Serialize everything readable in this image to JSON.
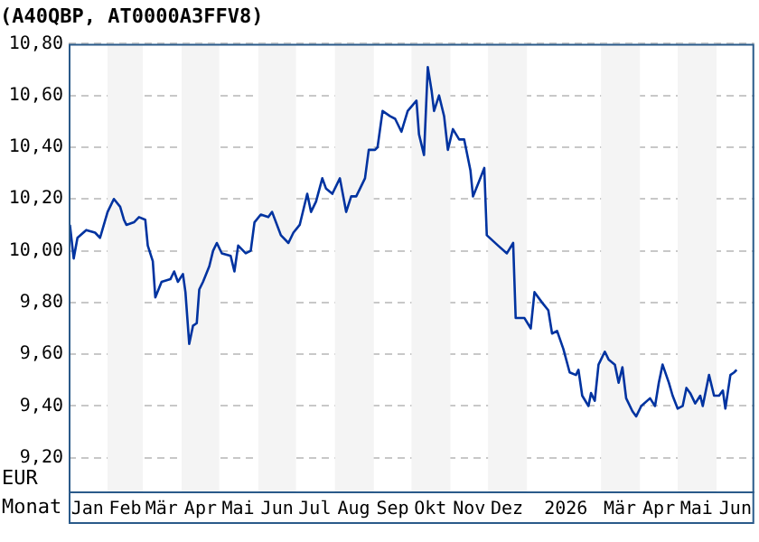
{
  "chart_data": {
    "type": "line",
    "title": "(A40QBP, AT0000A3FFV8)",
    "ylabel": "EUR",
    "xlabel": "Monat",
    "xlim": [
      "2025-01-01",
      "2026-07-01"
    ],
    "xticks": [
      {
        "value": "2025-01-16",
        "label": "Jan"
      },
      {
        "value": "2025-02-15",
        "label": "Feb"
      },
      {
        "value": "2025-03-16",
        "label": "Mär"
      },
      {
        "value": "2025-04-16",
        "label": "Apr"
      },
      {
        "value": "2025-05-16",
        "label": "Mai"
      },
      {
        "value": "2025-06-16",
        "label": "Jun"
      },
      {
        "value": "2025-07-16",
        "label": "Jul"
      },
      {
        "value": "2025-08-16",
        "label": "Aug"
      },
      {
        "value": "2025-09-16",
        "label": "Sep"
      },
      {
        "value": "2025-10-16",
        "label": "Okt"
      },
      {
        "value": "2025-11-16",
        "label": "Nov"
      },
      {
        "value": "2025-12-16",
        "label": "Dez"
      },
      {
        "value": "2026-02-01",
        "label": "2026"
      },
      {
        "value": "2026-03-16",
        "label": "Mär"
      },
      {
        "value": "2026-04-16",
        "label": "Apr"
      },
      {
        "value": "2026-05-16",
        "label": "Mai"
      },
      {
        "value": "2026-06-16",
        "label": "Jun"
      }
    ],
    "ylim": [
      9.07,
      10.8
    ],
    "yticks": [
      {
        "value": 9.2,
        "label": "9,20"
      },
      {
        "value": 9.4,
        "label": "9,40"
      },
      {
        "value": 9.6,
        "label": "9,60"
      },
      {
        "value": 9.8,
        "label": "9,80"
      },
      {
        "value": 10.0,
        "label": "10,00"
      },
      {
        "value": 10.2,
        "label": "10,20"
      },
      {
        "value": 10.4,
        "label": "10,40"
      },
      {
        "value": 10.6,
        "label": "10,60"
      },
      {
        "value": 10.8,
        "label": "10,80"
      }
    ],
    "grid": "y",
    "legend": false,
    "marker": "none",
    "line_style": "solid",
    "bands": [
      {
        "axis": "x",
        "from": "2025-02-01",
        "to": "2025-03-01",
        "color": "#f4f4f4"
      },
      {
        "axis": "x",
        "from": "2025-04-01",
        "to": "2025-05-01",
        "color": "#f4f4f4"
      },
      {
        "axis": "x",
        "from": "2025-06-01",
        "to": "2025-07-01",
        "color": "#f4f4f4"
      },
      {
        "axis": "x",
        "from": "2025-08-01",
        "to": "2025-09-01",
        "color": "#f4f4f4"
      },
      {
        "axis": "x",
        "from": "2025-10-01",
        "to": "2025-11-01",
        "color": "#f4f4f4"
      },
      {
        "axis": "x",
        "from": "2025-12-01",
        "to": "2026-01-01",
        "color": "#f4f4f4"
      },
      {
        "axis": "x",
        "from": "2026-03-01",
        "to": "2026-04-01",
        "color": "#f4f4f4"
      },
      {
        "axis": "x",
        "from": "2026-05-01",
        "to": "2026-06-01",
        "color": "#f4f4f4"
      }
    ],
    "series": [
      {
        "color": "#0033a0",
        "x": [
          "2025-01-02",
          "2025-01-05",
          "2025-01-08",
          "2025-01-15",
          "2025-01-22",
          "2025-01-26",
          "2025-02-01",
          "2025-02-06",
          "2025-02-11",
          "2025-02-14",
          "2025-02-16",
          "2025-02-22",
          "2025-02-26",
          "2025-03-03",
          "2025-03-05",
          "2025-03-09",
          "2025-03-11",
          "2025-03-16",
          "2025-03-23",
          "2025-03-26",
          "2025-03-29",
          "2025-04-02",
          "2025-04-04",
          "2025-04-07",
          "2025-04-10",
          "2025-04-13",
          "2025-04-15",
          "2025-04-18",
          "2025-04-23",
          "2025-04-26",
          "2025-04-29",
          "2025-05-03",
          "2025-05-10",
          "2025-05-13",
          "2025-05-16",
          "2025-05-22",
          "2025-05-26",
          "2025-05-29",
          "2025-06-03",
          "2025-06-09",
          "2025-06-12",
          "2025-06-19",
          "2025-06-25",
          "2025-06-29",
          "2025-07-04",
          "2025-07-10",
          "2025-07-13",
          "2025-07-17",
          "2025-07-22",
          "2025-07-25",
          "2025-07-30",
          "2025-08-05",
          "2025-08-10",
          "2025-08-14",
          "2025-08-18",
          "2025-08-21",
          "2025-08-25",
          "2025-08-28",
          "2025-09-02",
          "2025-09-04",
          "2025-09-08",
          "2025-09-14",
          "2025-09-18",
          "2025-09-23",
          "2025-09-28",
          "2025-10-05",
          "2025-10-07",
          "2025-10-11",
          "2025-10-14",
          "2025-10-17",
          "2025-10-19",
          "2025-10-23",
          "2025-10-27",
          "2025-10-30",
          "2025-11-03",
          "2025-11-08",
          "2025-11-12",
          "2025-11-17",
          "2025-11-19",
          "2025-11-24",
          "2025-11-28",
          "2025-11-30",
          "2025-12-09",
          "2025-12-16",
          "2025-12-21",
          "2025-12-23",
          "2025-12-30",
          "2026-01-04",
          "2026-01-07",
          "2026-01-13",
          "2026-01-18",
          "2026-01-21",
          "2026-01-25",
          "2026-01-30",
          "2026-02-04",
          "2026-02-09",
          "2026-02-11",
          "2026-02-14",
          "2026-02-19",
          "2026-02-21",
          "2026-02-24",
          "2026-02-27",
          "2026-03-04",
          "2026-03-07",
          "2026-03-12",
          "2026-03-15",
          "2026-03-18",
          "2026-03-21",
          "2026-03-26",
          "2026-03-29",
          "2026-04-02",
          "2026-04-09",
          "2026-04-13",
          "2026-04-16",
          "2026-04-19",
          "2026-04-24",
          "2026-04-27",
          "2026-05-01",
          "2026-05-05",
          "2026-05-08",
          "2026-05-11",
          "2026-05-15",
          "2026-05-19",
          "2026-05-21",
          "2026-05-26",
          "2026-05-30",
          "2026-06-03",
          "2026-06-06",
          "2026-06-08",
          "2026-06-12",
          "2026-06-15",
          "2026-06-17"
        ],
        "values": [
          10.1,
          9.97,
          10.05,
          10.08,
          10.07,
          10.05,
          10.15,
          10.2,
          10.17,
          10.12,
          10.1,
          10.11,
          10.13,
          10.12,
          10.02,
          9.96,
          9.82,
          9.88,
          9.89,
          9.92,
          9.88,
          9.91,
          9.84,
          9.64,
          9.71,
          9.72,
          9.85,
          9.88,
          9.94,
          10.0,
          10.03,
          9.99,
          9.98,
          9.92,
          10.02,
          9.99,
          10.0,
          10.11,
          10.14,
          10.13,
          10.15,
          10.06,
          10.03,
          10.07,
          10.1,
          10.22,
          10.15,
          10.19,
          10.28,
          10.24,
          10.22,
          10.28,
          10.15,
          10.21,
          10.21,
          10.24,
          10.28,
          10.39,
          10.39,
          10.4,
          10.54,
          10.52,
          10.51,
          10.46,
          10.54,
          10.58,
          10.45,
          10.37,
          10.71,
          10.62,
          10.54,
          10.6,
          10.52,
          10.39,
          10.47,
          10.43,
          10.43,
          10.31,
          10.21,
          10.27,
          10.32,
          10.06,
          10.02,
          9.99,
          10.03,
          9.74,
          9.74,
          9.7,
          9.84,
          9.8,
          9.77,
          9.68,
          9.69,
          9.62,
          9.53,
          9.52,
          9.54,
          9.44,
          9.4,
          9.45,
          9.42,
          9.56,
          9.61,
          9.58,
          9.56,
          9.49,
          9.55,
          9.43,
          9.38,
          9.36,
          9.4,
          9.43,
          9.4,
          9.49,
          9.56,
          9.49,
          9.44,
          9.39,
          9.4,
          9.47,
          9.45,
          9.41,
          9.44,
          9.4,
          9.52,
          9.44,
          9.44,
          9.46,
          9.39,
          9.52,
          9.53,
          9.54
        ]
      }
    ]
  }
}
